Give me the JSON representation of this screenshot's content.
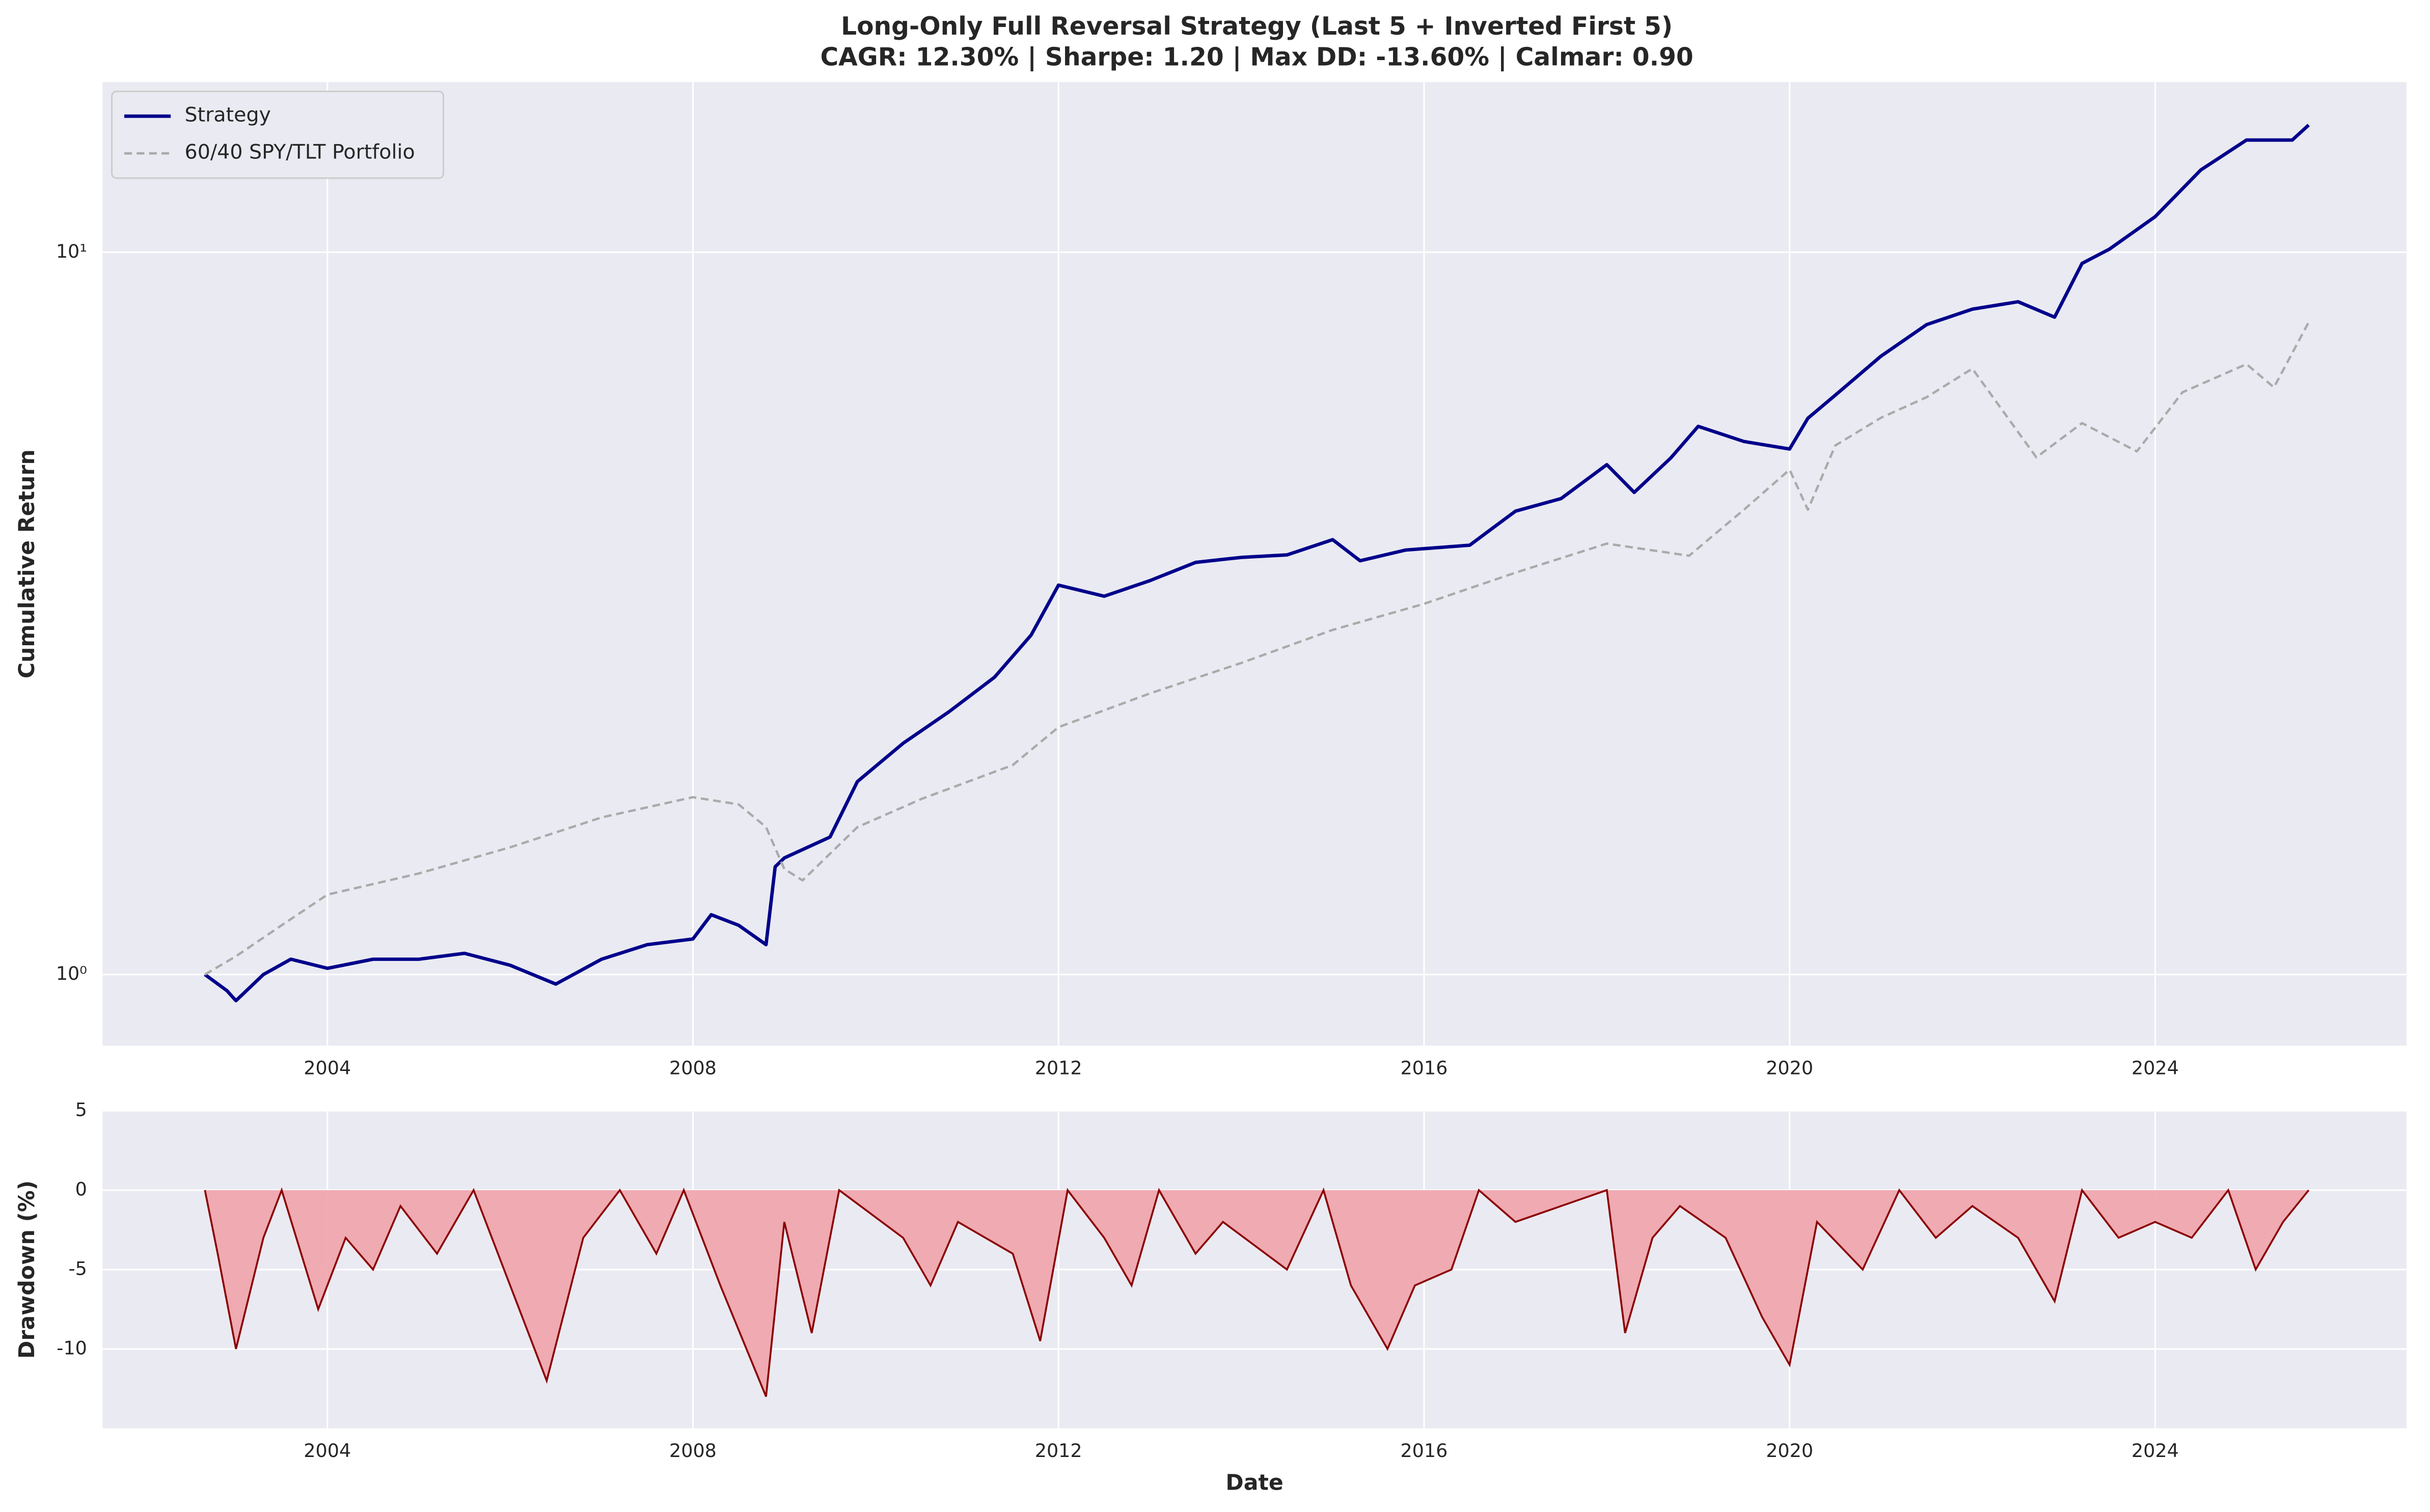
{
  "chart_data": [
    {
      "type": "line",
      "title": "Long-Only Full Reversal Strategy (Last 5 + Inverted First 5)",
      "subtitle": "CAGR: 12.30% | Sharpe: 1.20 | Max DD: -13.60% | Calmar: 0.90",
      "y_label": "Cumulative Return",
      "log_y": true,
      "grid": true,
      "legend": "upper-left",
      "xlim": [
        2001.54,
        2026.75
      ],
      "xticks": [
        2004,
        2008,
        2012,
        2016,
        2020,
        2024
      ],
      "ylim": [
        0.797,
        17.2
      ],
      "yticks": [
        {
          "value": 1,
          "label": "10⁰"
        },
        {
          "value": 10,
          "label": "10¹"
        }
      ],
      "series": [
        {
          "name": "Strategy",
          "color": "#00008b",
          "linestyle": "solid",
          "x": [
            2002.66,
            2002.9,
            2003.0,
            2003.3,
            2003.6,
            2004.0,
            2004.5,
            2005.0,
            2005.5,
            2006.0,
            2006.5,
            2007.0,
            2007.5,
            2008.0,
            2008.2,
            2008.5,
            2008.8,
            2008.9,
            2009.0,
            2009.5,
            2009.8,
            2010.3,
            2010.8,
            2011.3,
            2011.7,
            2012.0,
            2012.5,
            2013.0,
            2013.5,
            2014.0,
            2014.5,
            2015.0,
            2015.3,
            2015.8,
            2016.5,
            2017.0,
            2017.5,
            2018.0,
            2018.3,
            2018.7,
            2019.0,
            2019.5,
            2020.0,
            2020.2,
            2020.5,
            2021.0,
            2021.5,
            2022.0,
            2022.5,
            2022.9,
            2023.2,
            2023.5,
            2024.0,
            2024.5,
            2025.0,
            2025.5,
            2025.68
          ],
          "values": [
            1.0,
            0.95,
            0.92,
            1.0,
            1.05,
            1.02,
            1.05,
            1.05,
            1.07,
            1.03,
            0.97,
            1.05,
            1.1,
            1.12,
            1.21,
            1.17,
            1.1,
            1.41,
            1.45,
            1.55,
            1.85,
            2.09,
            2.31,
            2.58,
            2.95,
            3.46,
            3.34,
            3.51,
            3.72,
            3.78,
            3.81,
            4.0,
            3.74,
            3.87,
            3.93,
            4.38,
            4.56,
            5.08,
            4.65,
            5.19,
            5.74,
            5.47,
            5.34,
            5.89,
            6.34,
            7.18,
            7.94,
            8.34,
            8.54,
            8.13,
            9.65,
            10.1,
            11.2,
            13.0,
            14.3,
            14.3,
            15.0
          ]
        },
        {
          "name": "60/40 SPY/TLT Portfolio",
          "color": "#aaaaaa",
          "linestyle": "dashed",
          "x": [
            2002.66,
            2003.0,
            2003.5,
            2004.0,
            2005.0,
            2006.0,
            2007.0,
            2008.0,
            2008.5,
            2008.8,
            2009.0,
            2009.2,
            2009.8,
            2010.5,
            2011.5,
            2012.0,
            2013.0,
            2014.0,
            2015.0,
            2016.0,
            2017.0,
            2018.0,
            2018.9,
            2019.5,
            2020.0,
            2020.2,
            2020.5,
            2021.0,
            2021.5,
            2022.0,
            2022.7,
            2023.2,
            2023.8,
            2024.3,
            2025.0,
            2025.3,
            2025.68
          ],
          "values": [
            1.0,
            1.06,
            1.17,
            1.29,
            1.38,
            1.5,
            1.65,
            1.76,
            1.72,
            1.6,
            1.4,
            1.35,
            1.6,
            1.75,
            1.95,
            2.2,
            2.45,
            2.7,
            3.0,
            3.26,
            3.6,
            3.95,
            3.8,
            4.4,
            5.0,
            4.4,
            5.4,
            5.9,
            6.3,
            6.9,
            5.2,
            5.8,
            5.3,
            6.4,
            7.0,
            6.5,
            8.0
          ]
        }
      ]
    },
    {
      "type": "area",
      "y_label": "Drawdown (%)",
      "x_label": "Date",
      "grid": true,
      "color": "#f0a3ab",
      "line_color": "#8b0000",
      "xlim": [
        2001.54,
        2026.75
      ],
      "xticks": [
        2004,
        2008,
        2012,
        2016,
        2020,
        2024
      ],
      "ylim": [
        -15,
        5
      ],
      "yticks": [
        5,
        0,
        -5,
        -10
      ],
      "x": [
        2002.66,
        2002.8,
        2003.0,
        2003.3,
        2003.5,
        2003.9,
        2004.2,
        2004.5,
        2004.8,
        2005.2,
        2005.6,
        2006.0,
        2006.4,
        2006.8,
        2007.2,
        2007.6,
        2007.9,
        2008.3,
        2008.8,
        2009.0,
        2009.3,
        2009.6,
        2010.3,
        2010.6,
        2010.9,
        2011.5,
        2011.8,
        2012.1,
        2012.5,
        2012.8,
        2013.1,
        2013.5,
        2013.8,
        2014.5,
        2014.9,
        2015.2,
        2015.6,
        2015.9,
        2016.3,
        2016.6,
        2017.0,
        2017.5,
        2018.0,
        2018.2,
        2018.5,
        2018.8,
        2019.3,
        2019.7,
        2020.0,
        2020.3,
        2020.8,
        2021.2,
        2021.6,
        2022.0,
        2022.5,
        2022.9,
        2023.2,
        2023.6,
        2024.0,
        2024.4,
        2024.8,
        2025.1,
        2025.4,
        2025.68
      ],
      "values": [
        0,
        -4,
        -10,
        -3,
        0,
        -7.5,
        -3,
        -5,
        -1,
        -4,
        0,
        -6,
        -12,
        -3,
        0,
        -4,
        0,
        -6,
        -13,
        -2,
        -9,
        0,
        -3,
        -6,
        -2,
        -4,
        -9.5,
        0,
        -3,
        -6,
        0,
        -4,
        -2,
        -5,
        0,
        -6,
        -10,
        -6,
        -5,
        0,
        -2,
        -1,
        0,
        -9,
        -3,
        -1,
        -3,
        -8,
        -11,
        -2,
        -5,
        0,
        -3,
        -1,
        -3,
        -7,
        0,
        -3,
        -2,
        -3,
        0,
        -5,
        -2,
        0
      ]
    }
  ]
}
